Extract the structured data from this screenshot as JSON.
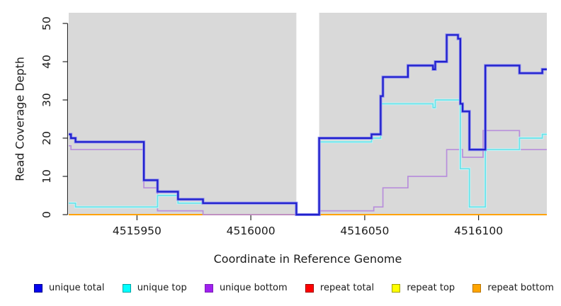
{
  "chart_data": {
    "type": "line",
    "subtype": "step",
    "title": "",
    "xlabel": "Coordinate in Reference Genome",
    "ylabel": "Read Coverage Depth",
    "xlim": [
      4515920,
      4516130
    ],
    "ylim": [
      0,
      52.8
    ],
    "x_ticks": [
      4515950,
      4516000,
      4516050,
      4516100
    ],
    "y_ticks": [
      0,
      10,
      20,
      30,
      40,
      50
    ],
    "grid": false,
    "legend_position": "bottom",
    "plot_background": "#d9d9d9",
    "axis_color": "#262626",
    "no_data_gap": {
      "start": 4516020,
      "end": 4516030
    },
    "series": [
      {
        "name": "unique total",
        "color": "#2121cb",
        "halo": "#8d8df2",
        "legend_fill": "#0505ee",
        "legend_border": "#00008b",
        "width": 2.2,
        "z": 6,
        "segments": [
          [
            [
              4515920,
              21
            ],
            [
              4515921,
              20
            ],
            [
              4515923,
              19
            ],
            [
              4515953,
              9
            ],
            [
              4515959,
              6
            ],
            [
              4515968,
              4
            ],
            [
              4515979,
              3
            ],
            [
              4516020,
              0
            ],
            [
              4516030,
              20
            ],
            [
              4516053,
              21
            ],
            [
              4516057,
              31
            ],
            [
              4516058,
              36
            ],
            [
              4516069,
              39
            ],
            [
              4516080,
              38
            ],
            [
              4516081,
              40
            ],
            [
              4516086,
              47
            ],
            [
              4516091,
              46
            ],
            [
              4516092,
              29
            ],
            [
              4516093,
              27
            ],
            [
              4516096,
              17
            ],
            [
              4516103,
              39
            ],
            [
              4516118,
              37
            ],
            [
              4516128,
              38
            ],
            [
              4516130,
              38
            ]
          ]
        ]
      },
      {
        "name": "unique top",
        "color": "#68e2e9",
        "halo": "#c8f5f7",
        "legend_fill": "#00ffff",
        "legend_border": "#00a3a3",
        "width": 1.7,
        "z": 5,
        "segments": [
          [
            [
              4515920,
              3
            ],
            [
              4515923,
              2
            ],
            [
              4515959,
              5
            ],
            [
              4515968,
              3
            ],
            [
              4516020,
              0
            ]
          ],
          [
            [
              4516030,
              0
            ],
            [
              4516030,
              19
            ],
            [
              4516053,
              20
            ],
            [
              4516057,
              29
            ],
            [
              4516080,
              28
            ],
            [
              4516081,
              30
            ],
            [
              4516092,
              12
            ],
            [
              4516096,
              2
            ],
            [
              4516103,
              17
            ],
            [
              4516118,
              20
            ],
            [
              4516128,
              21
            ],
            [
              4516130,
              21
            ]
          ]
        ]
      },
      {
        "name": "unique bottom",
        "color": "#b88edb",
        "halo": "",
        "legend_fill": "#a020f0",
        "legend_border": "#7a1fb5",
        "width": 1.7,
        "z": 4,
        "segments": [
          [
            [
              4515920,
              18
            ],
            [
              4515921,
              17
            ],
            [
              4515953,
              7
            ],
            [
              4515959,
              1
            ],
            [
              4515979,
              0
            ],
            [
              4516020,
              0
            ]
          ],
          [
            [
              4516030,
              0
            ],
            [
              4516030,
              1
            ],
            [
              4516054,
              2
            ],
            [
              4516058,
              7
            ],
            [
              4516069,
              10
            ],
            [
              4516086,
              17
            ],
            [
              4516093,
              15
            ],
            [
              4516102,
              22
            ],
            [
              4516118,
              17
            ],
            [
              4516130,
              17
            ]
          ]
        ]
      },
      {
        "name": "repeat total",
        "color": "#dd2222",
        "halo": "",
        "legend_fill": "#ff0000",
        "legend_border": "#a00000",
        "width": 1.6,
        "z": 2,
        "segments": [
          [
            [
              4515920,
              0
            ],
            [
              4516020,
              0
            ]
          ],
          [
            [
              4516030,
              0
            ],
            [
              4516130,
              0
            ]
          ]
        ]
      },
      {
        "name": "repeat top",
        "color": "#f5f500",
        "halo": "",
        "legend_fill": "#ffff00",
        "legend_border": "#a0a000",
        "width": 1.6,
        "z": 1,
        "segments": [
          [
            [
              4515920,
              0
            ],
            [
              4516020,
              0
            ]
          ],
          [
            [
              4516030,
              0
            ],
            [
              4516130,
              0
            ]
          ]
        ]
      },
      {
        "name": "repeat bottom",
        "color": "#ffa200",
        "halo": "",
        "legend_fill": "#ffa500",
        "legend_border": "#b87400",
        "width": 2,
        "z": 3,
        "segments": [
          [
            [
              4515920,
              0
            ],
            [
              4516020,
              0
            ]
          ],
          [
            [
              4516030,
              0
            ],
            [
              4516130,
              0
            ]
          ]
        ]
      }
    ]
  }
}
